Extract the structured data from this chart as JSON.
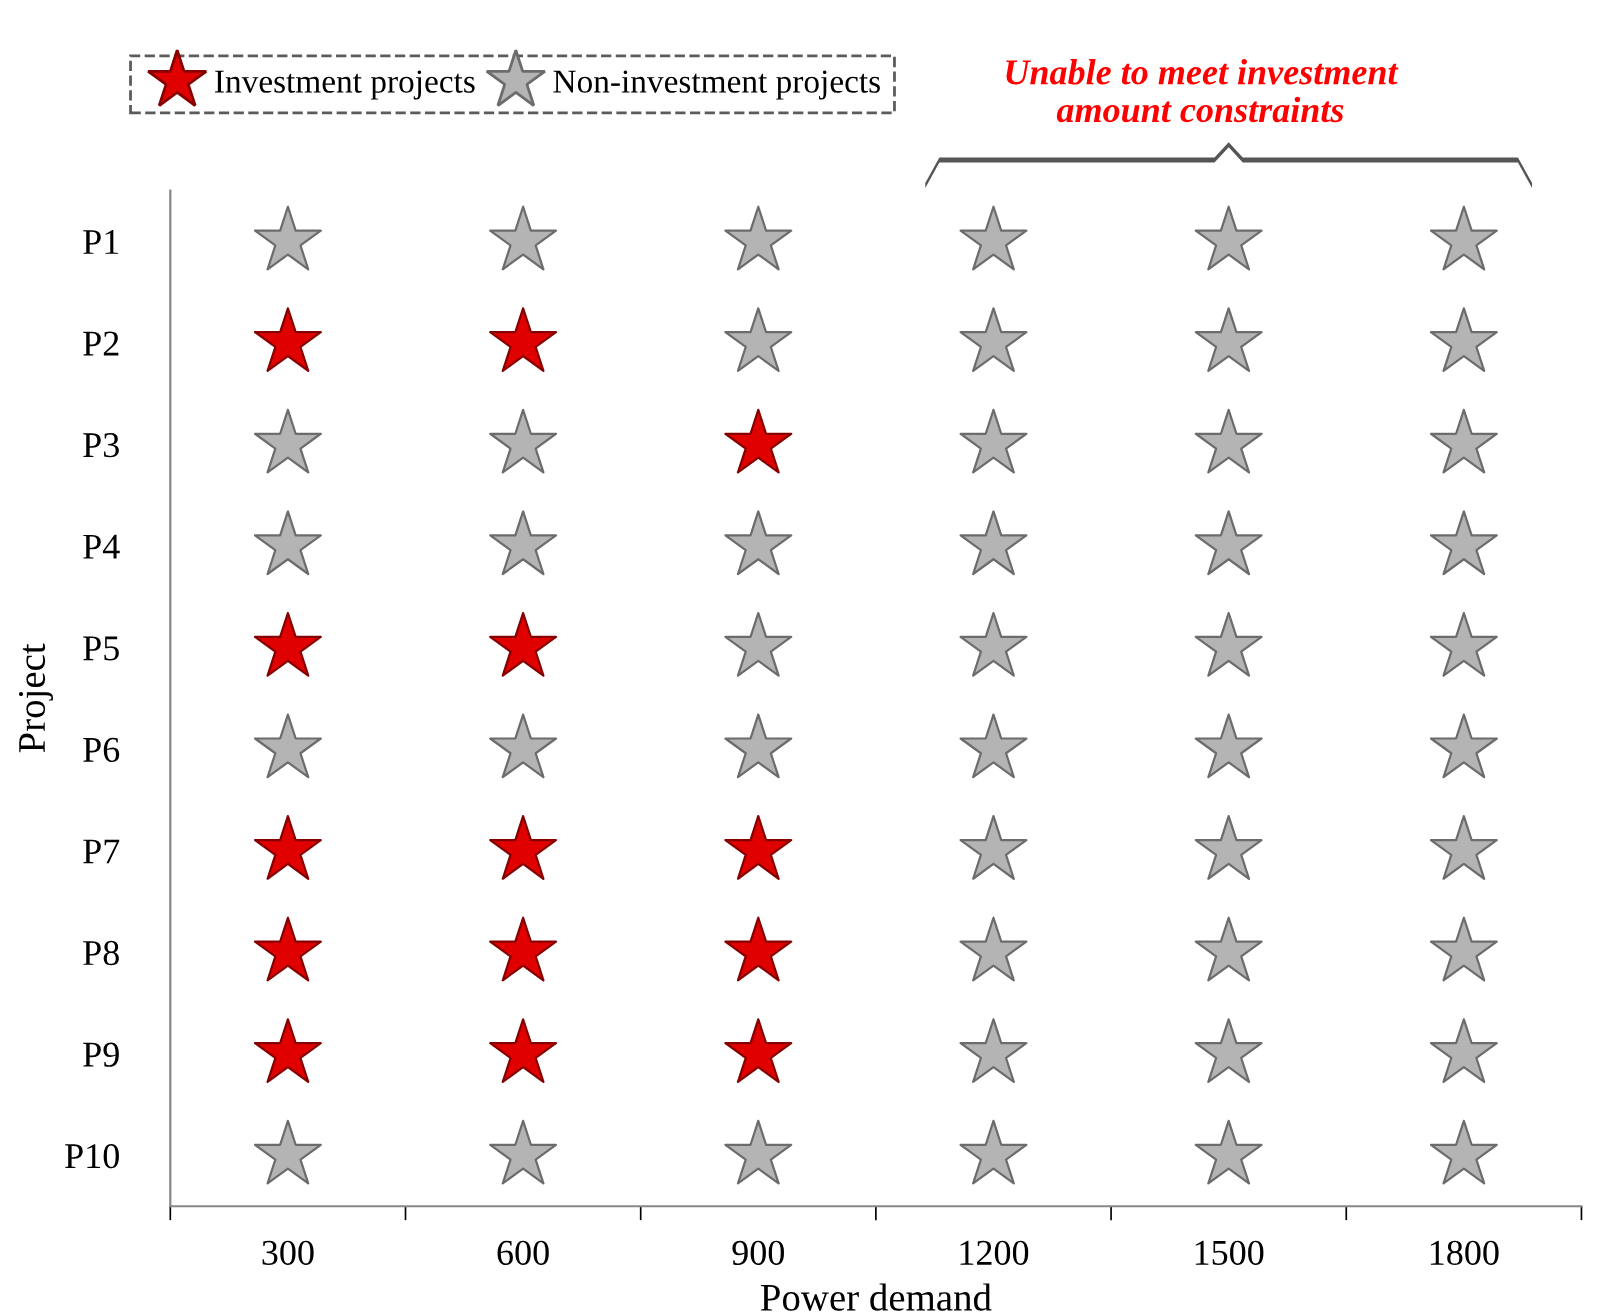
{
  "chart_data": {
    "type": "scatter",
    "orientation": "horizontal",
    "xlabel": "Power demand",
    "ylabel": "Project",
    "categories": [
      "P1",
      "P2",
      "P3",
      "P4",
      "P5",
      "P6",
      "P7",
      "P8",
      "P9",
      "P10"
    ],
    "xlim": [
      150,
      1950
    ],
    "xticks": [
      300,
      600,
      900,
      1200,
      1500,
      1800,
      {
        "value": 150,
        "label": null
      },
      {
        "value": 450,
        "label": null
      },
      {
        "value": 750,
        "label": null
      },
      {
        "value": 1050,
        "label": null
      },
      {
        "value": 1350,
        "label": null
      },
      {
        "value": 1650,
        "label": null
      },
      {
        "value": 1950,
        "label": null
      }
    ],
    "series": [
      {
        "name": "Investment projects",
        "color": "#e00000",
        "x": [
          "P2",
          "P2",
          "P3",
          "P5",
          "P5",
          "P7",
          "P7",
          "P7",
          "P8",
          "P8",
          "P8",
          "P9",
          "P9",
          "P9"
        ],
        "values": [
          300,
          600,
          900,
          300,
          600,
          300,
          600,
          900,
          300,
          600,
          900,
          300,
          600,
          900
        ]
      },
      {
        "name": "Non-investment projects",
        "color": "#b4b4b4",
        "x": [
          "P1",
          "P1",
          "P1",
          "P1",
          "P1",
          "P1",
          "P2",
          "P2",
          "P2",
          "P2",
          "P3",
          "P3",
          "P3",
          "P3",
          "P3",
          "P4",
          "P4",
          "P4",
          "P4",
          "P4",
          "P4",
          "P5",
          "P5",
          "P5",
          "P5",
          "P6",
          "P6",
          "P6",
          "P6",
          "P6",
          "P6",
          "P7",
          "P7",
          "P7",
          "P8",
          "P8",
          "P8",
          "P9",
          "P9",
          "P9",
          "P10",
          "P10",
          "P10",
          "P10",
          "P10",
          "P10"
        ],
        "values": [
          300,
          600,
          900,
          1200,
          1500,
          1800,
          900,
          1200,
          1500,
          1800,
          300,
          600,
          1200,
          1500,
          1800,
          300,
          600,
          900,
          1200,
          1500,
          1800,
          900,
          1200,
          1500,
          1800,
          300,
          600,
          900,
          1200,
          1500,
          1800,
          1200,
          1500,
          1800,
          1200,
          1500,
          1800,
          1200,
          1500,
          1800,
          300,
          600,
          900,
          1200,
          1500,
          1800
        ]
      }
    ],
    "annotations": [
      "Unable to meet investment\namount constraints"
    ],
    "marker": "star",
    "legend": "top left",
    "grid": false
  }
}
